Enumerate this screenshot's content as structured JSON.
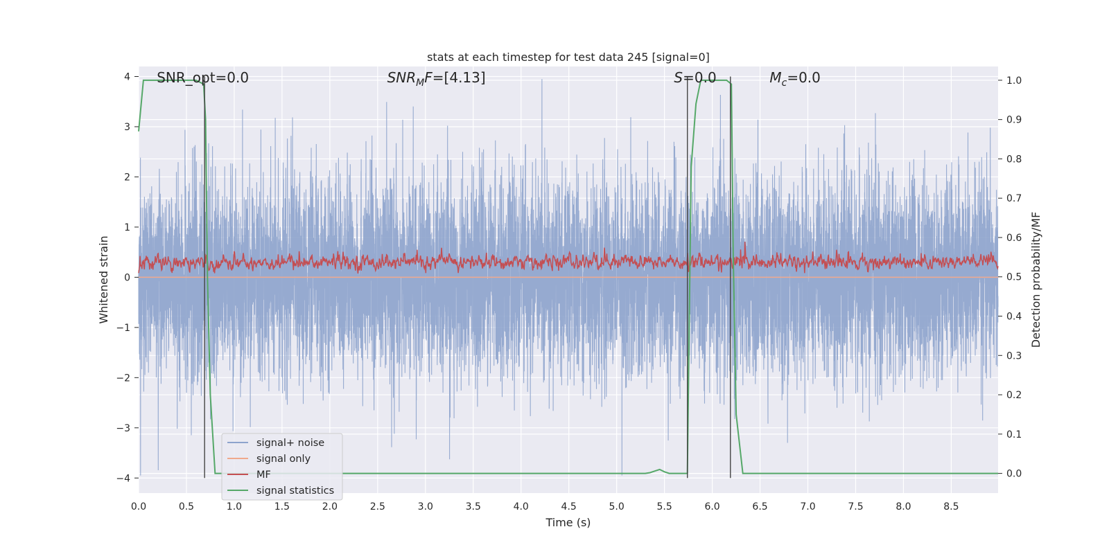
{
  "chart_data": {
    "type": "line",
    "title": "stats at each timestep for test data 245 [signal=0]",
    "xlabel": "Time (s)",
    "ylabel": "Whitened strain",
    "y2label": "Detection probability/MF",
    "xlim": [
      0,
      8.99
    ],
    "ylim": [
      -4.3,
      4.2
    ],
    "y2lim": [
      -0.05,
      1.035
    ],
    "x_ticks": [
      "0.0",
      "0.5",
      "1.0",
      "1.5",
      "2.0",
      "2.5",
      "3.0",
      "3.5",
      "4.0",
      "4.5",
      "5.0",
      "5.5",
      "6.0",
      "6.5",
      "7.0",
      "7.5",
      "8.0",
      "8.5"
    ],
    "y_ticks": [
      "−4",
      "−3",
      "−2",
      "−1",
      "0",
      "1",
      "2",
      "3",
      "4"
    ],
    "y2_ticks": [
      "0.0",
      "0.1",
      "0.2",
      "0.3",
      "0.4",
      "0.5",
      "0.6",
      "0.7",
      "0.8",
      "0.9",
      "1.0"
    ],
    "grid": true,
    "legend_position": "lower-left",
    "series": [
      {
        "name": "signal+ noise",
        "axis": "left",
        "color": "#8da3cc",
        "description_values": "dense noise, mostly within [-2, 2], peaks up to about 3.9 and down to about -3.9",
        "sample_rate_hz": 1000,
        "noise_std": 0.95
      },
      {
        "name": "signal only",
        "axis": "left",
        "color": "#f0a98c",
        "x": [
          0,
          8.99
        ],
        "y": [
          0,
          0
        ]
      },
      {
        "name": "MF",
        "axis": "left",
        "color": "#c44e52",
        "center": 0.3,
        "range": [
          -0.05,
          0.95
        ]
      },
      {
        "name": "signal statistics",
        "axis": "right",
        "color": "#55a868",
        "x": [
          0.0,
          0.05,
          0.1,
          0.3,
          0.5,
          0.6,
          0.68,
          0.7,
          0.72,
          0.75,
          0.8,
          5.3,
          5.35,
          5.4,
          5.45,
          5.5,
          5.55,
          5.74,
          5.76,
          5.78,
          5.83,
          5.88,
          5.95,
          6.15,
          6.2,
          6.22,
          6.25,
          6.32,
          8.99
        ],
        "y": [
          0.87,
          1.0,
          1.0,
          1.0,
          1.0,
          1.0,
          0.99,
          0.9,
          0.5,
          0.2,
          0.0,
          0.0,
          0.002,
          0.006,
          0.01,
          0.004,
          0.0,
          0.0,
          0.4,
          0.78,
          0.94,
          1.0,
          1.0,
          1.0,
          0.99,
          0.55,
          0.15,
          0.0,
          0.0
        ]
      }
    ],
    "vertical_lines": [
      0.69,
      5.74,
      6.19
    ],
    "annotations": [
      {
        "text": "SNR_opt=0.0",
        "x": 0.19
      },
      {
        "text": "SNR_MF=[4.13]",
        "x": 2.6
      },
      {
        "text": "S=0.0",
        "x": 5.6
      },
      {
        "text": "M_c=0.0",
        "x": 6.6
      }
    ],
    "legend": [
      "signal+ noise",
      "signal only",
      "MF",
      "signal statistics"
    ],
    "colors": {
      "plot_bg": "#eaeaf2",
      "grid": "#ffffff",
      "vline": "#444444",
      "legend_bg": "#eaeaf2"
    }
  }
}
